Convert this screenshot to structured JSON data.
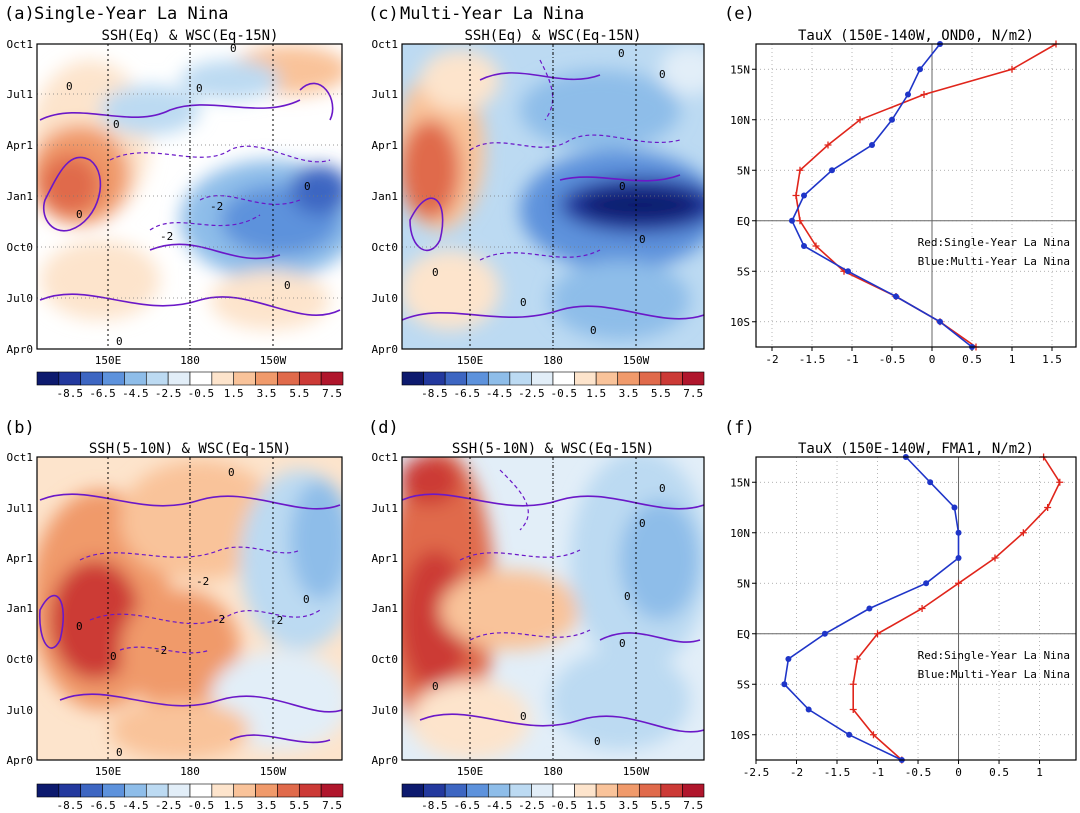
{
  "colorbar": {
    "ticks": [
      "-8.5",
      "-6.5",
      "-4.5",
      "-2.5",
      "-0.5",
      "1.5",
      "3.5",
      "5.5",
      "7.5"
    ],
    "colors": [
      "#0d1a6e",
      "#23399e",
      "#3d66c2",
      "#5d92dc",
      "#8ebde9",
      "#bcdaf2",
      "#e2eef8",
      "#ffffff",
      "#fde4cc",
      "#f9c39a",
      "#f09a6b",
      "#e06a4b",
      "#cc3a36",
      "#b0162c"
    ]
  },
  "contour_colors": {
    "solid": "#6b18c8",
    "dashed": "#6b18c8"
  },
  "map_panels": [
    {
      "id": "a",
      "label": "(a)",
      "heading": "Single-Year La Nina",
      "subtitle": "SSH(Eq) & WSC(Eq-15N)",
      "x_ticks": [
        "150E",
        "180",
        "150W"
      ],
      "y_ticks": [
        "Oct1",
        "Jul1",
        "Apr1",
        "Jan1",
        "Oct0",
        "Jul0",
        "Apr0"
      ],
      "contour_labels": [
        "0",
        "0",
        "0",
        "0",
        "-2",
        "-2",
        "0",
        "0",
        "0",
        "0"
      ]
    },
    {
      "id": "c",
      "label": "(c)",
      "heading": "Multi-Year La Nina",
      "subtitle": "SSH(Eq) & WSC(Eq-15N)",
      "x_ticks": [
        "150E",
        "180",
        "150W"
      ],
      "y_ticks": [
        "Oct1",
        "Jul1",
        "Apr1",
        "Jan1",
        "Oct0",
        "Jul0",
        "Apr0"
      ],
      "contour_labels": [
        "0",
        "0",
        "0",
        "0",
        "0",
        "0",
        "0"
      ]
    },
    {
      "id": "b",
      "label": "(b)",
      "heading": "",
      "subtitle": "SSH(5-10N) & WSC(Eq-15N)",
      "x_ticks": [
        "150E",
        "180",
        "150W"
      ],
      "y_ticks": [
        "Oct1",
        "Jul1",
        "Apr1",
        "Jan1",
        "Oct0",
        "Jul0",
        "Apr0"
      ],
      "contour_labels": [
        "0",
        "-2",
        "-2",
        "-2",
        "0",
        "0",
        "-2",
        "0",
        "0"
      ]
    },
    {
      "id": "d",
      "label": "(d)",
      "heading": "",
      "subtitle": "SSH(5-10N) & WSC(Eq-15N)",
      "x_ticks": [
        "150E",
        "180",
        "150W"
      ],
      "y_ticks": [
        "Oct1",
        "Jul1",
        "Apr1",
        "Jan1",
        "Oct0",
        "Jul0",
        "Apr0"
      ],
      "contour_labels": [
        "0",
        "0",
        "0",
        "0",
        "0",
        "0",
        "0"
      ]
    }
  ],
  "chart_data": [
    {
      "type": "line",
      "label": "(e)",
      "title": "TauX (150E-140W, OND0, N/m2)",
      "xlim": [
        -2.2,
        1.8
      ],
      "ylim": [
        -12.5,
        17.5
      ],
      "x_ticks": [
        "-2",
        "-1.5",
        "-1",
        "-0.5",
        "0",
        "0.5",
        "1",
        "1.5"
      ],
      "x_tick_values": [
        -2,
        -1.5,
        -1,
        -0.5,
        0,
        0.5,
        1,
        1.5
      ],
      "y_ticks": [
        "15N",
        "10N",
        "5N",
        "EQ",
        "5S",
        "10S"
      ],
      "y_tick_values": [
        15,
        10,
        5,
        0,
        -5,
        -10
      ],
      "annotation": [
        "Red:Single-Year La Nina",
        "Blue:Multi-Year La Nina"
      ],
      "series": [
        {
          "name": "Single-Year La Nina",
          "color": "#e0251b",
          "marker": "+",
          "x": [
            0.55,
            0.1,
            -0.45,
            -1.1,
            -1.45,
            -1.65,
            -1.7,
            -1.65,
            -1.3,
            -0.9,
            -0.1,
            1.0,
            1.55
          ],
          "y": [
            -12.5,
            -10,
            -7.5,
            -5,
            -2.5,
            0,
            2.5,
            5,
            7.5,
            10,
            12.5,
            15,
            17.5
          ]
        },
        {
          "name": "Multi-Year La Nina",
          "color": "#1f35c8",
          "marker": "o",
          "x": [
            0.5,
            0.1,
            -0.45,
            -1.05,
            -1.6,
            -1.75,
            -1.6,
            -1.25,
            -0.75,
            -0.5,
            -0.3,
            -0.15,
            0.1
          ],
          "y": [
            -12.5,
            -10,
            -7.5,
            -5,
            -2.5,
            0,
            2.5,
            5,
            7.5,
            10,
            12.5,
            15,
            17.5
          ]
        }
      ]
    },
    {
      "type": "line",
      "label": "(f)",
      "title": "TauX (150E-140W, FMA1, N/m2)",
      "xlim": [
        -2.5,
        1.45
      ],
      "ylim": [
        -12.5,
        17.5
      ],
      "x_ticks": [
        "-2.5",
        "-2",
        "-1.5",
        "-1",
        "-0.5",
        "0",
        "0.5",
        "1"
      ],
      "x_tick_values": [
        -2.5,
        -2,
        -1.5,
        -1,
        -0.5,
        0,
        0.5,
        1
      ],
      "y_ticks": [
        "15N",
        "10N",
        "5N",
        "EQ",
        "5S",
        "10S"
      ],
      "y_tick_values": [
        15,
        10,
        5,
        0,
        -5,
        -10
      ],
      "annotation": [
        "Red:Single-Year La Nina",
        "Blue:Multi-Year La Nina"
      ],
      "series": [
        {
          "name": "Single-Year La Nina",
          "color": "#e0251b",
          "marker": "+",
          "x": [
            -0.7,
            -1.05,
            -1.3,
            -1.3,
            -1.25,
            -1.0,
            -0.45,
            0.0,
            0.45,
            0.8,
            1.1,
            1.25,
            1.05
          ],
          "y": [
            -12.5,
            -10,
            -7.5,
            -5,
            -2.5,
            0,
            2.5,
            5,
            7.5,
            10,
            12.5,
            15,
            17.5
          ]
        },
        {
          "name": "Multi-Year La Nina",
          "color": "#1f35c8",
          "marker": "o",
          "x": [
            -0.7,
            -1.35,
            -1.85,
            -2.15,
            -2.1,
            -1.65,
            -1.1,
            -0.4,
            0.0,
            0.0,
            -0.05,
            -0.35,
            -0.65
          ],
          "y": [
            -12.5,
            -10,
            -7.5,
            -5,
            -2.5,
            0,
            2.5,
            5,
            7.5,
            10,
            12.5,
            15,
            17.5
          ]
        }
      ]
    }
  ]
}
